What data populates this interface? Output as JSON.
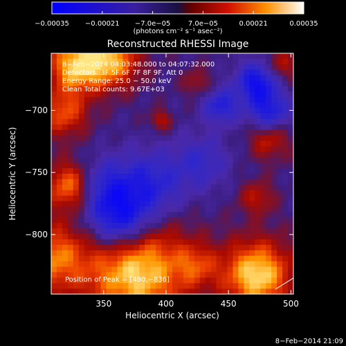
{
  "chart_data": {
    "type": "heatmap",
    "title": "Reconstructed RHESSI Image",
    "xlabel": "Heliocentric X (arcsec)",
    "ylabel": "Heliocentric Y (arcsec)",
    "xlim": [
      308,
      502
    ],
    "ylim": [
      -848,
      -654
    ],
    "x_ticks": [
      350,
      400,
      450,
      500
    ],
    "y_ticks": [
      -700,
      -750,
      -800
    ],
    "x_tick_labels": [
      "350",
      "400",
      "450",
      "500"
    ],
    "y_tick_labels": [
      "−700",
      "−750",
      "−800"
    ],
    "colorbar": {
      "range": [
        -0.00035,
        0.00035
      ],
      "tick_values": [
        -0.00035,
        -0.00021,
        -7e-05,
        7e-05,
        0.00021,
        0.00035
      ],
      "tick_labels": [
        "−0.00035",
        "−0.00021",
        "−7.0e−05",
        "7.0e−05",
        "0.00021",
        "0.00035"
      ],
      "unit_label": "(photons cm⁻² s⁻¹ asec⁻²)"
    },
    "annotations": [
      "8−Feb−2014 04:03:48.000 to 04:07:32.000",
      "Detectors: 3F 5F 6F 7F 8F 9F, Att 0",
      "Energy Range: 25.0 − 50.0 keV",
      "Clean    Total counts: 9.67E+03"
    ],
    "peak_label": "Position of Peak = [480,−836]",
    "peak_position": [
      480,
      -836
    ],
    "timestamp": "8−Feb−2014 21:09"
  },
  "palette": {
    "background": "#000000",
    "foreground": "#ffffff"
  }
}
